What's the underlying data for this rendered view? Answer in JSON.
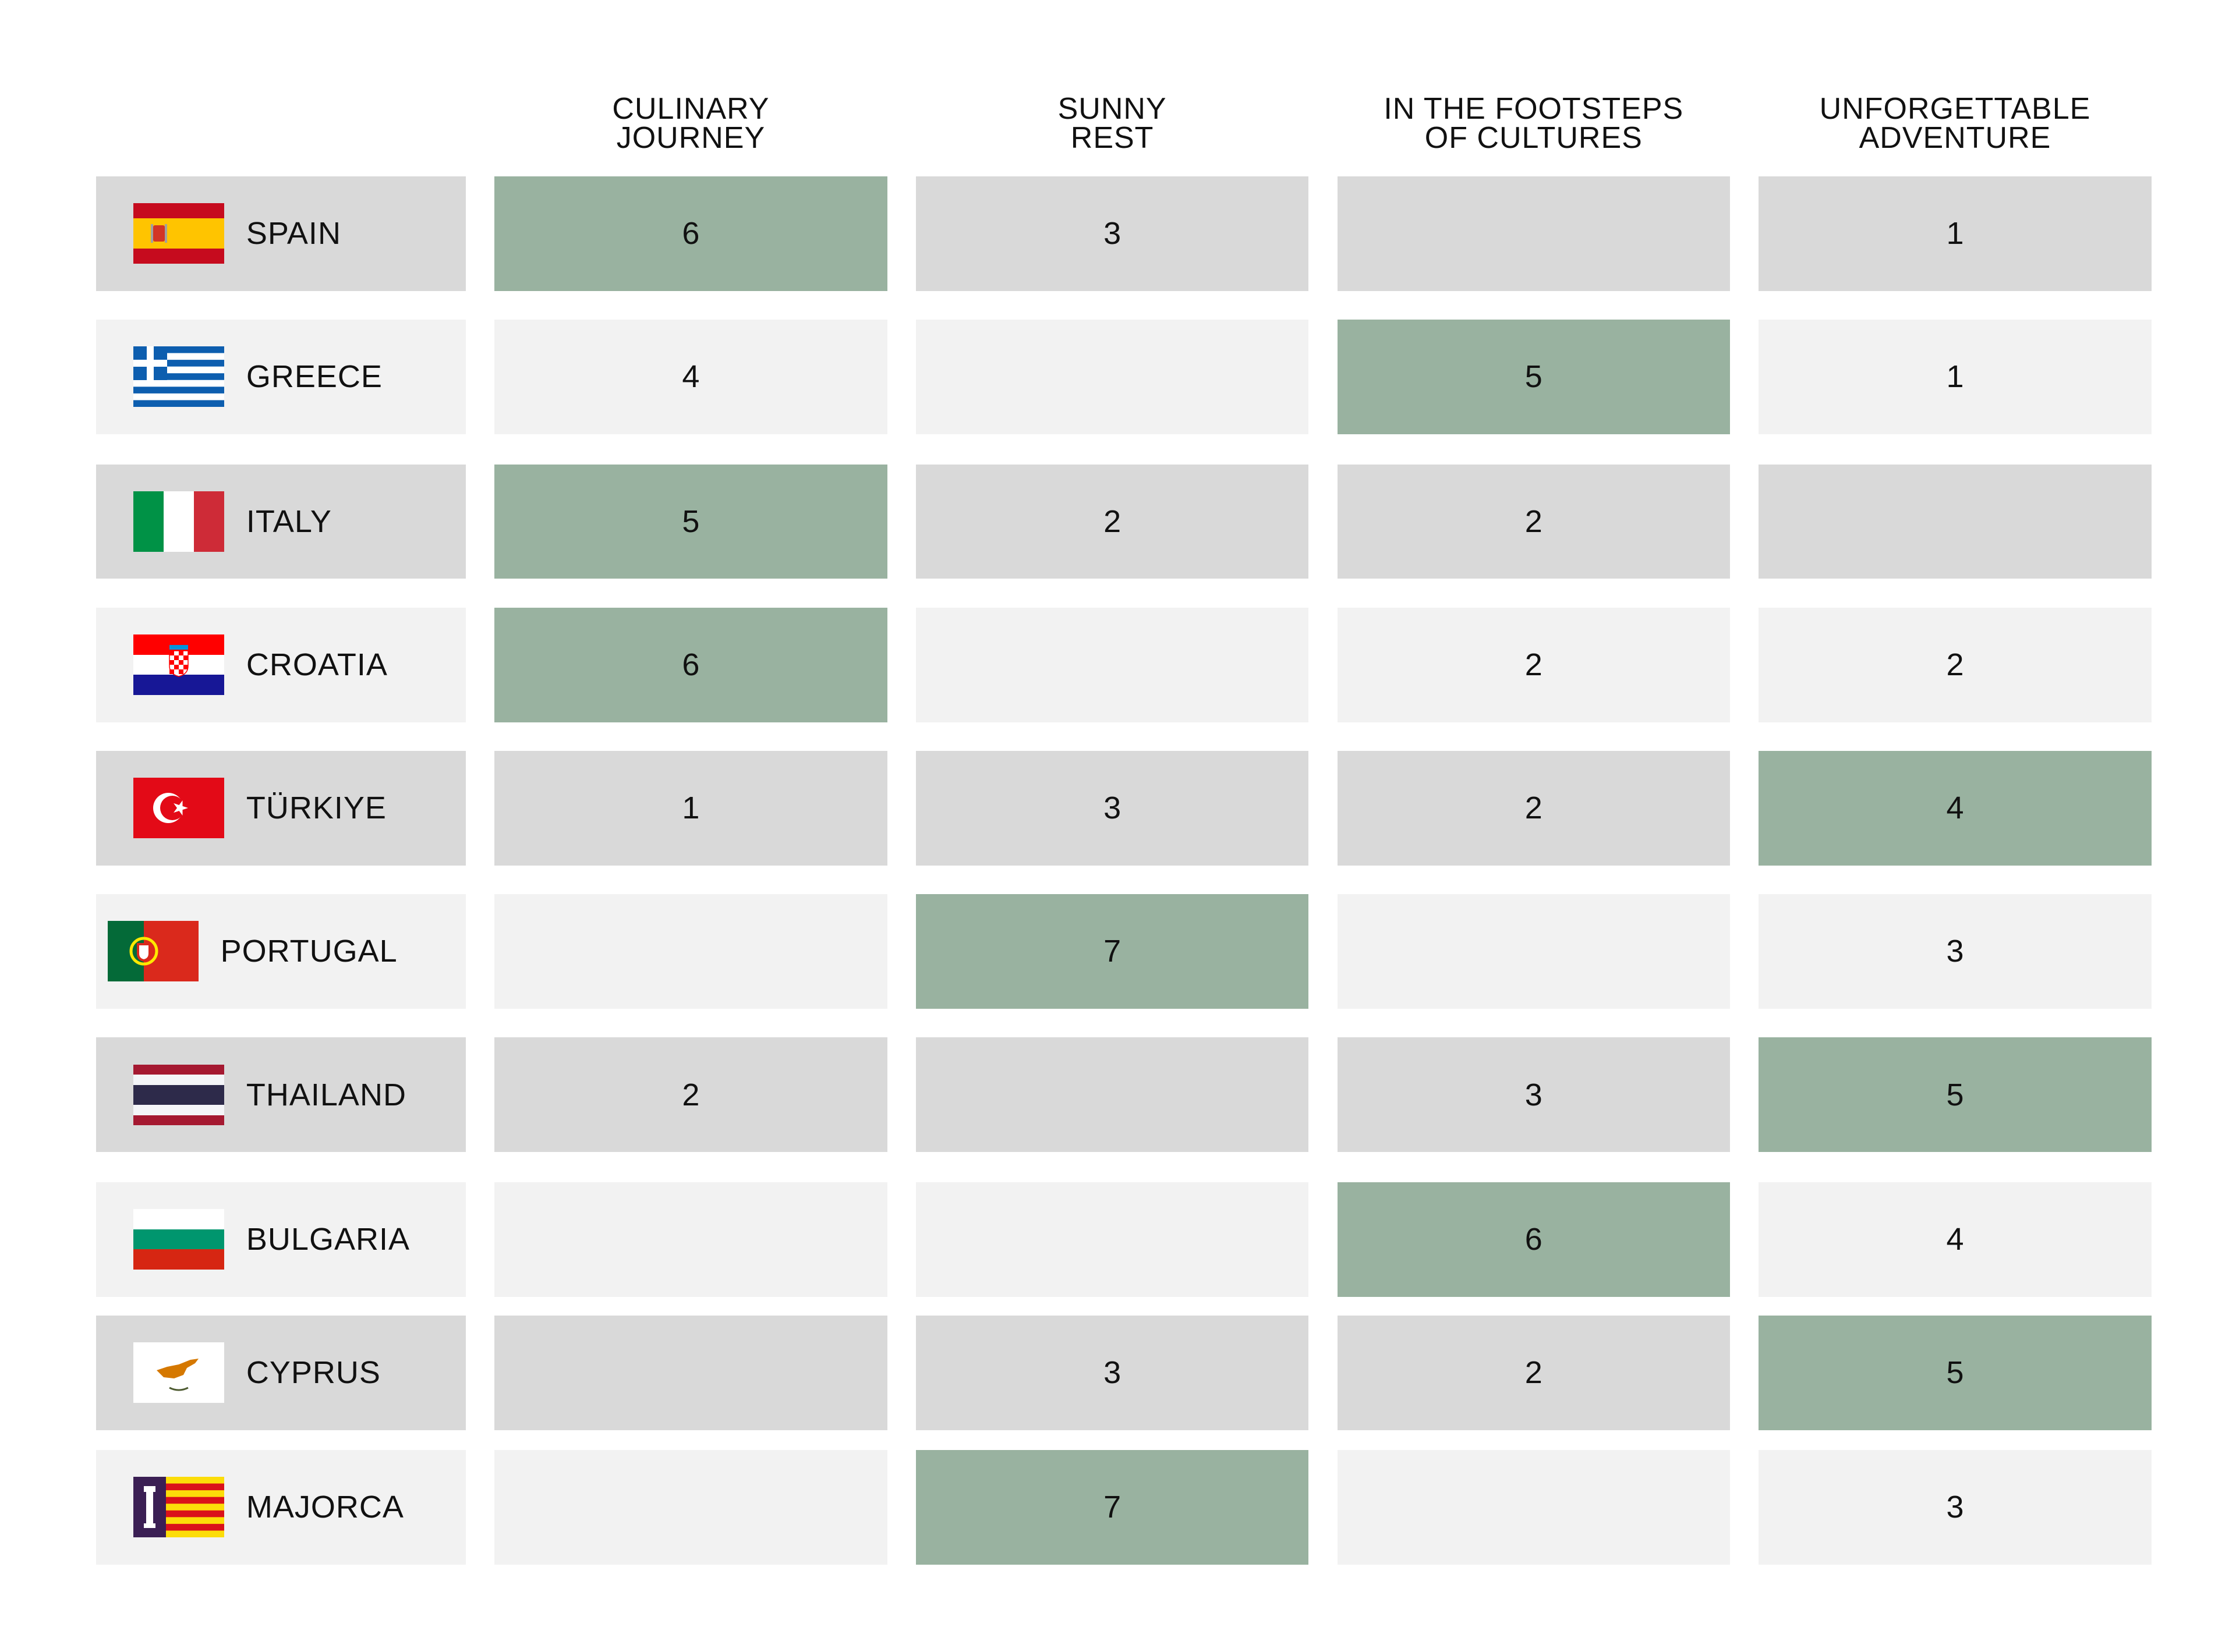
{
  "chart_data": {
    "type": "table",
    "columns": [
      {
        "line1": "CULINARY",
        "line2": "JOURNEY"
      },
      {
        "line1": "SUNNY",
        "line2": "REST"
      },
      {
        "line1": "IN THE FOOTSTEPS",
        "line2": "OF CULTURES"
      },
      {
        "line1": "UNFORGETTABLE",
        "line2": "ADVENTURE"
      }
    ],
    "rows": [
      {
        "country": "SPAIN",
        "flag": "spain-flag-icon",
        "values": [
          "6",
          "3",
          "",
          "1"
        ],
        "highlight": 0
      },
      {
        "country": "GREECE",
        "flag": "greece-flag-icon",
        "values": [
          "4",
          "",
          "5",
          "1"
        ],
        "highlight": 2
      },
      {
        "country": "ITALY",
        "flag": "italy-flag-icon",
        "values": [
          "5",
          "2",
          "2",
          ""
        ],
        "highlight": 0
      },
      {
        "country": "CROATIA",
        "flag": "croatia-flag-icon",
        "values": [
          "6",
          "",
          "2",
          "2"
        ],
        "highlight": 0
      },
      {
        "country": "TÜRKIYE",
        "flag": "turkiye-flag-icon",
        "values": [
          "1",
          "3",
          "2",
          "4"
        ],
        "highlight": 3
      },
      {
        "country": "PORTUGAL",
        "flag": "portugal-flag-icon",
        "values": [
          "",
          "7",
          "",
          "3"
        ],
        "highlight": 1
      },
      {
        "country": "THAILAND",
        "flag": "thailand-flag-icon",
        "values": [
          "2",
          "",
          "3",
          "5"
        ],
        "highlight": 3
      },
      {
        "country": "BULGARIA",
        "flag": "bulgaria-flag-icon",
        "values": [
          "",
          "",
          "6",
          "4"
        ],
        "highlight": 2
      },
      {
        "country": "CYPRUS",
        "flag": "cyprus-flag-icon",
        "values": [
          "",
          "3",
          "2",
          "5"
        ],
        "highlight": 3
      },
      {
        "country": "MAJORCA",
        "flag": "majorca-flag-icon",
        "values": [
          "",
          "7",
          "",
          "3"
        ],
        "highlight": 1
      }
    ]
  },
  "colors": {
    "highlight": "#99b2a0",
    "row_dark": "#d9d9d9",
    "row_light": "#f2f2f2",
    "text": "#111111"
  }
}
